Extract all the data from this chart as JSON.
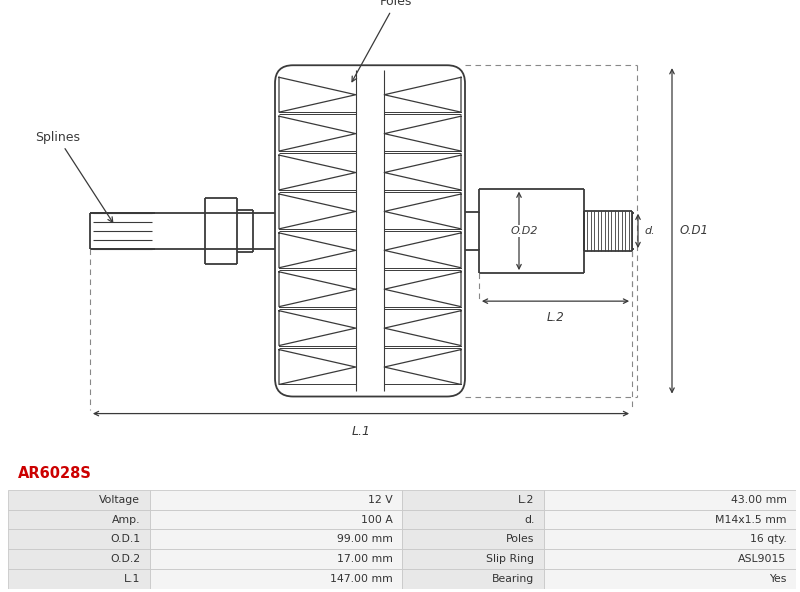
{
  "title": "AR6028S",
  "title_color": "#cc0000",
  "bg_color": "#ffffff",
  "table_data": [
    [
      "Voltage",
      "12 V",
      "L.2",
      "43.00 mm"
    ],
    [
      "Amp.",
      "100 A",
      "d.",
      "M14x1.5 mm"
    ],
    [
      "O.D.1",
      "99.00 mm",
      "Poles",
      "16 qty."
    ],
    [
      "O.D.2",
      "17.00 mm",
      "Slip Ring",
      "ASL9015"
    ],
    [
      "L.1",
      "147.00 mm",
      "Bearing",
      "Yes"
    ]
  ],
  "line_color": "#3a3a3a",
  "dim_color": "#3a3a3a",
  "dash_color": "#888888"
}
